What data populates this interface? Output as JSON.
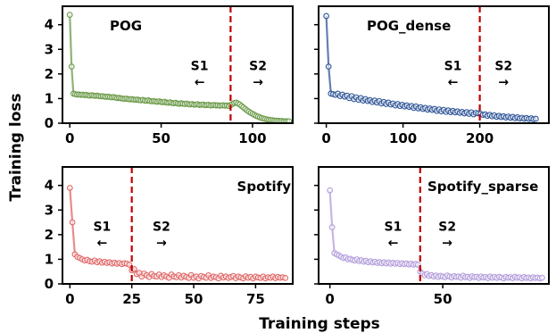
{
  "figure": {
    "xlabel": "Training steps",
    "ylabel": "Training loss"
  },
  "chart_data": [
    {
      "type": "line",
      "title": "POG",
      "color": "#6b9a48",
      "xlim": [
        -4,
        122
      ],
      "ylim": [
        0,
        4.75
      ],
      "xticks": [
        0,
        50,
        100
      ],
      "yticks": [
        0,
        1,
        2,
        3,
        4
      ],
      "divider_x": 88,
      "divider_color": "#c00000",
      "annotations": [
        {
          "label": "S1",
          "arrow": "←",
          "x": 71,
          "y": 1.65
        },
        {
          "label": "S2",
          "arrow": "→",
          "x": 103,
          "y": 1.65
        }
      ],
      "series": [
        {
          "x": [
            0,
            1,
            2,
            3,
            4,
            5,
            6,
            7,
            8,
            9,
            10,
            11,
            12,
            13,
            14,
            15,
            16,
            17,
            18,
            19,
            20,
            21,
            22,
            23,
            24,
            25,
            26,
            27,
            28,
            29,
            30,
            31,
            32,
            33,
            34,
            35,
            36,
            37,
            38,
            39,
            40,
            41,
            42,
            43,
            44,
            45,
            46,
            47,
            48,
            49,
            50,
            51,
            52,
            53,
            54,
            55,
            56,
            57,
            58,
            59,
            60,
            61,
            62,
            63,
            64,
            65,
            66,
            67,
            68,
            69,
            70,
            71,
            72,
            73,
            74,
            75,
            76,
            77,
            78,
            79,
            80,
            81,
            82,
            83,
            84,
            85,
            86,
            87,
            88,
            89,
            90,
            91,
            92,
            93,
            94,
            95,
            96,
            97,
            98,
            99,
            100,
            101,
            102,
            103,
            104,
            105,
            106,
            107,
            108,
            109,
            110,
            111,
            112,
            113,
            114,
            115,
            116,
            117,
            118,
            119,
            120
          ],
          "y": [
            4.4,
            2.3,
            1.2,
            1.18,
            1.16,
            1.17,
            1.15,
            1.16,
            1.14,
            1.15,
            1.13,
            1.12,
            1.14,
            1.12,
            1.11,
            1.12,
            1.1,
            1.09,
            1.1,
            1.08,
            1.07,
            1.08,
            1.06,
            1.05,
            1.06,
            1.04,
            1.02,
            1.03,
            1.01,
            1.0,
            0.99,
            1.0,
            0.98,
            0.97,
            0.98,
            0.96,
            0.95,
            0.96,
            0.94,
            0.93,
            0.95,
            0.92,
            0.91,
            0.93,
            0.9,
            0.89,
            0.9,
            0.88,
            0.87,
            0.89,
            0.86,
            0.85,
            0.87,
            0.84,
            0.83,
            0.85,
            0.82,
            0.81,
            0.83,
            0.8,
            0.79,
            0.81,
            0.79,
            0.78,
            0.8,
            0.77,
            0.76,
            0.78,
            0.75,
            0.76,
            0.77,
            0.74,
            0.75,
            0.76,
            0.73,
            0.74,
            0.75,
            0.72,
            0.73,
            0.74,
            0.72,
            0.73,
            0.71,
            0.72,
            0.73,
            0.71,
            0.72,
            0.7,
            0.74,
            0.78,
            0.82,
            0.84,
            0.8,
            0.76,
            0.7,
            0.64,
            0.58,
            0.52,
            0.47,
            0.42,
            0.38,
            0.34,
            0.3,
            0.27,
            0.24,
            0.21,
            0.19,
            0.17,
            0.15,
            0.14,
            0.13,
            0.12,
            0.11,
            0.1,
            0.1,
            0.09,
            0.09,
            0.08,
            0.08,
            0.08,
            0.08
          ]
        }
      ]
    },
    {
      "type": "line",
      "title": "POG_dense",
      "color": "#2f5597",
      "xlim": [
        -10,
        290
      ],
      "ylim": [
        0,
        4.75
      ],
      "xticks": [
        0,
        100,
        200
      ],
      "yticks": [
        0,
        1,
        2,
        3,
        4
      ],
      "divider_x": 200,
      "divider_color": "#c00000",
      "annotations": [
        {
          "label": "S1",
          "arrow": "←",
          "x": 165,
          "y": 1.65
        },
        {
          "label": "S2",
          "arrow": "→",
          "x": 231,
          "y": 1.65
        }
      ],
      "series": [
        {
          "x": [
            0,
            3,
            6,
            9,
            12,
            15,
            18,
            21,
            24,
            27,
            30,
            33,
            36,
            39,
            42,
            45,
            48,
            51,
            54,
            57,
            60,
            63,
            66,
            69,
            72,
            75,
            78,
            81,
            84,
            87,
            90,
            93,
            96,
            99,
            102,
            105,
            108,
            111,
            114,
            117,
            120,
            123,
            126,
            129,
            132,
            135,
            138,
            141,
            144,
            147,
            150,
            153,
            156,
            159,
            162,
            165,
            168,
            171,
            174,
            177,
            180,
            183,
            186,
            189,
            192,
            195,
            198,
            201,
            204,
            207,
            210,
            213,
            216,
            219,
            222,
            225,
            228,
            231,
            234,
            237,
            240,
            243,
            246,
            249,
            252,
            255,
            258,
            261,
            264,
            267,
            270,
            273
          ],
          "y": [
            4.35,
            2.3,
            1.2,
            1.18,
            1.15,
            1.2,
            1.1,
            1.16,
            1.08,
            1.12,
            1.02,
            1.1,
            0.98,
            1.05,
            0.95,
            1.02,
            0.92,
            0.98,
            0.9,
            0.94,
            0.86,
            0.92,
            0.84,
            0.9,
            0.8,
            0.86,
            0.78,
            0.84,
            0.76,
            0.8,
            0.72,
            0.78,
            0.7,
            0.75,
            0.68,
            0.72,
            0.66,
            0.7,
            0.62,
            0.68,
            0.6,
            0.65,
            0.58,
            0.62,
            0.55,
            0.6,
            0.54,
            0.58,
            0.5,
            0.56,
            0.48,
            0.54,
            0.46,
            0.52,
            0.45,
            0.5,
            0.44,
            0.48,
            0.42,
            0.46,
            0.4,
            0.45,
            0.38,
            0.44,
            0.36,
            0.42,
            0.4,
            0.38,
            0.34,
            0.36,
            0.3,
            0.34,
            0.28,
            0.32,
            0.26,
            0.3,
            0.25,
            0.28,
            0.23,
            0.27,
            0.22,
            0.26,
            0.2,
            0.24,
            0.19,
            0.22,
            0.18,
            0.21,
            0.17,
            0.2,
            0.16,
            0.18
          ]
        }
      ]
    },
    {
      "type": "line",
      "title": "Spotify",
      "color": "#e06666",
      "xlim": [
        -3,
        90
      ],
      "ylim": [
        0,
        4.75
      ],
      "xticks": [
        0,
        25,
        50,
        75
      ],
      "yticks": [
        0,
        1,
        2,
        3,
        4
      ],
      "divider_x": 25,
      "divider_color": "#c00000",
      "annotations": [
        {
          "label": "S1",
          "arrow": "←",
          "x": 13,
          "y": 1.65
        },
        {
          "label": "S2",
          "arrow": "→",
          "x": 37,
          "y": 1.65
        }
      ],
      "series": [
        {
          "x": [
            0,
            1,
            2,
            3,
            4,
            5,
            6,
            7,
            8,
            9,
            10,
            11,
            12,
            13,
            14,
            15,
            16,
            17,
            18,
            19,
            20,
            21,
            22,
            23,
            24,
            25,
            26,
            27,
            28,
            29,
            30,
            31,
            32,
            33,
            34,
            35,
            36,
            37,
            38,
            39,
            40,
            41,
            42,
            43,
            44,
            45,
            46,
            47,
            48,
            49,
            50,
            51,
            52,
            53,
            54,
            55,
            56,
            57,
            58,
            59,
            60,
            61,
            62,
            63,
            64,
            65,
            66,
            67,
            68,
            69,
            70,
            71,
            72,
            73,
            74,
            75,
            76,
            77,
            78,
            79,
            80,
            81,
            82,
            83,
            84,
            85,
            86,
            87
          ],
          "y": [
            3.9,
            2.5,
            1.2,
            1.1,
            1.05,
            1.0,
            0.95,
            0.98,
            0.92,
            0.9,
            0.95,
            0.88,
            0.92,
            0.86,
            0.9,
            0.85,
            0.88,
            0.83,
            0.86,
            0.82,
            0.85,
            0.8,
            0.84,
            0.82,
            0.78,
            0.55,
            0.6,
            0.4,
            0.45,
            0.3,
            0.42,
            0.35,
            0.28,
            0.4,
            0.32,
            0.3,
            0.38,
            0.28,
            0.35,
            0.3,
            0.25,
            0.38,
            0.3,
            0.27,
            0.35,
            0.26,
            0.33,
            0.28,
            0.24,
            0.36,
            0.25,
            0.3,
            0.22,
            0.32,
            0.28,
            0.25,
            0.35,
            0.24,
            0.3,
            0.27,
            0.22,
            0.33,
            0.26,
            0.3,
            0.24,
            0.28,
            0.32,
            0.23,
            0.3,
            0.26,
            0.22,
            0.31,
            0.25,
            0.28,
            0.22,
            0.3,
            0.26,
            0.24,
            0.3,
            0.22,
            0.27,
            0.25,
            0.3,
            0.23,
            0.28,
            0.25,
            0.27,
            0.24
          ]
        }
      ]
    },
    {
      "type": "line",
      "title": "Spotify_sparse",
      "color": "#b39ddb",
      "xlim": [
        -5,
        97
      ],
      "ylim": [
        0,
        4.75
      ],
      "xticks": [
        0,
        50
      ],
      "yticks": [
        0,
        1,
        2,
        3,
        4
      ],
      "divider_x": 40,
      "divider_color": "#c00000",
      "annotations": [
        {
          "label": "S1",
          "arrow": "←",
          "x": 28,
          "y": 1.65
        },
        {
          "label": "S2",
          "arrow": "→",
          "x": 52,
          "y": 1.65
        }
      ],
      "series": [
        {
          "x": [
            0,
            1,
            2,
            3,
            4,
            5,
            6,
            7,
            8,
            9,
            10,
            11,
            12,
            13,
            14,
            15,
            16,
            17,
            18,
            19,
            20,
            21,
            22,
            23,
            24,
            25,
            26,
            27,
            28,
            29,
            30,
            31,
            32,
            33,
            34,
            35,
            36,
            37,
            38,
            39,
            40,
            41,
            42,
            43,
            44,
            45,
            46,
            47,
            48,
            49,
            50,
            51,
            52,
            53,
            54,
            55,
            56,
            57,
            58,
            59,
            60,
            61,
            62,
            63,
            64,
            65,
            66,
            67,
            68,
            69,
            70,
            71,
            72,
            73,
            74,
            75,
            76,
            77,
            78,
            79,
            80,
            81,
            82,
            83,
            84,
            85,
            86,
            87,
            88,
            89,
            90,
            91,
            92,
            93,
            94
          ],
          "y": [
            3.8,
            2.3,
            1.25,
            1.2,
            1.15,
            1.1,
            1.05,
            1.08,
            1.0,
            1.02,
            0.98,
            0.95,
            1.0,
            0.93,
            0.96,
            0.9,
            0.94,
            0.88,
            0.92,
            0.87,
            0.9,
            0.85,
            0.89,
            0.84,
            0.88,
            0.83,
            0.87,
            0.82,
            0.86,
            0.82,
            0.85,
            0.8,
            0.84,
            0.8,
            0.83,
            0.79,
            0.82,
            0.78,
            0.81,
            0.78,
            0.5,
            0.42,
            0.35,
            0.4,
            0.32,
            0.36,
            0.3,
            0.34,
            0.28,
            0.33,
            0.3,
            0.27,
            0.34,
            0.3,
            0.26,
            0.32,
            0.28,
            0.3,
            0.25,
            0.33,
            0.27,
            0.29,
            0.24,
            0.31,
            0.27,
            0.29,
            0.24,
            0.3,
            0.26,
            0.28,
            0.23,
            0.3,
            0.25,
            0.28,
            0.24,
            0.29,
            0.26,
            0.22,
            0.28,
            0.25,
            0.27,
            0.23,
            0.29,
            0.25,
            0.27,
            0.22,
            0.28,
            0.24,
            0.26,
            0.22,
            0.27,
            0.24,
            0.26,
            0.22,
            0.25
          ]
        }
      ]
    }
  ]
}
